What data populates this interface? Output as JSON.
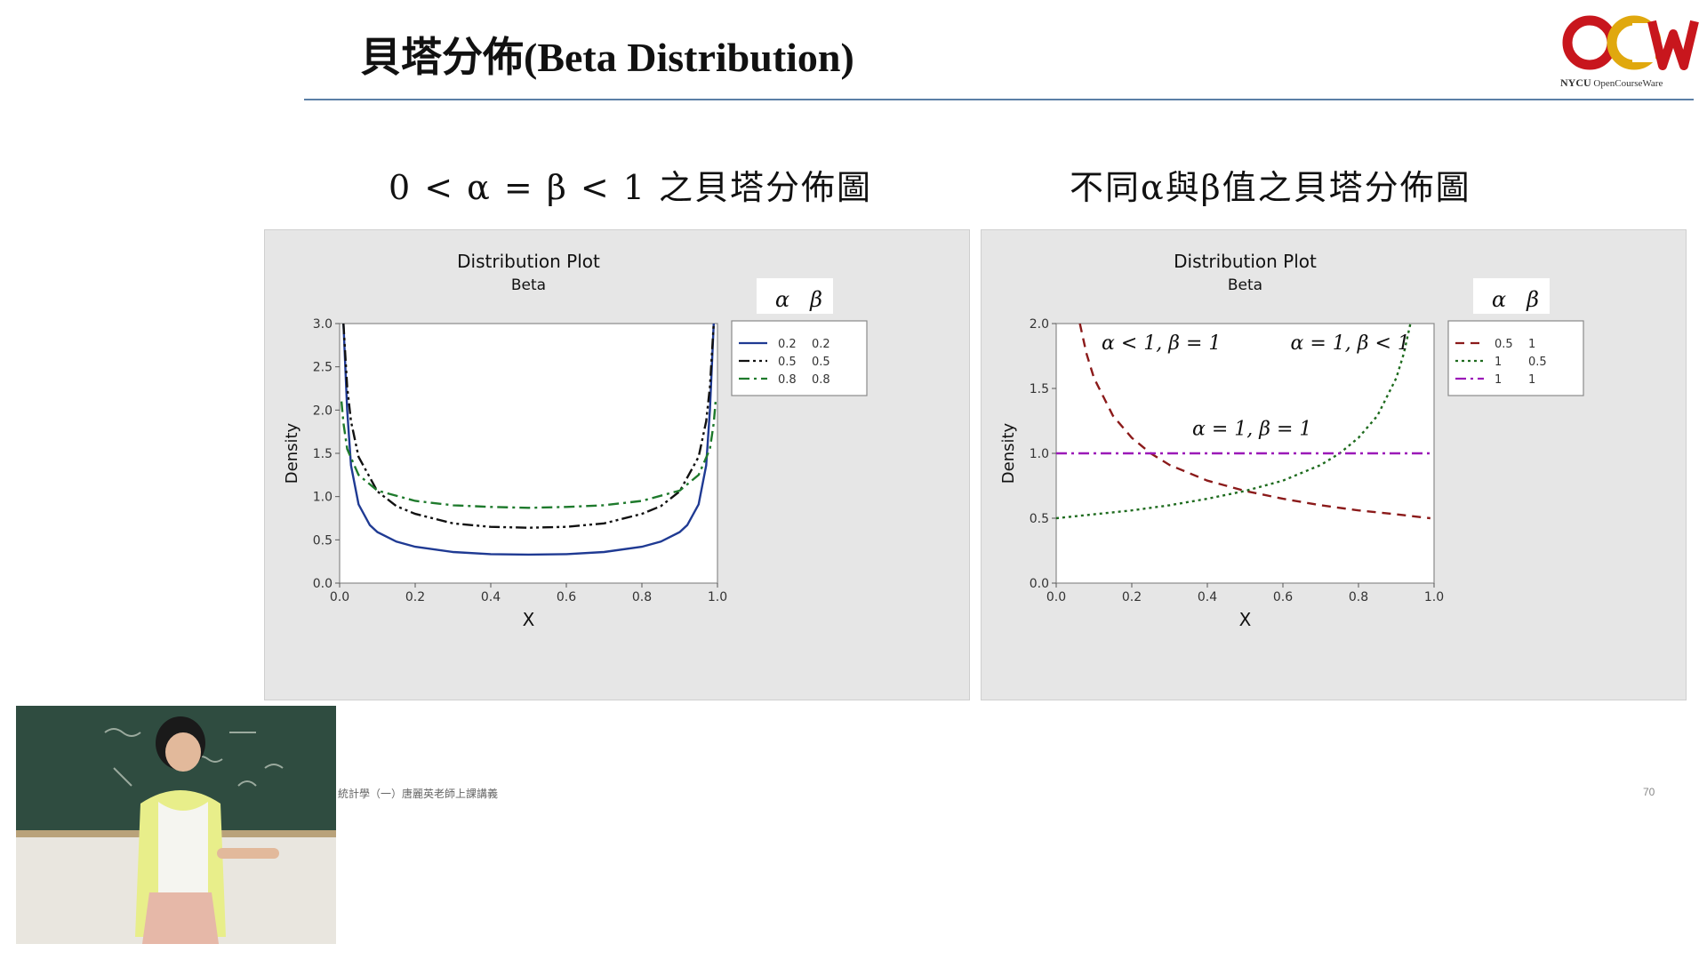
{
  "slide": {
    "title": "貝塔分佈(Beta Distribution)",
    "subtitle_left": "0 < α = β < 1 之貝塔分佈圖",
    "subtitle_right": "不同α與β值之貝塔分佈圖",
    "footer": "統計學（一）唐麗英老師上課講義",
    "page_number": "70"
  },
  "logo": {
    "text": "OCW",
    "caption_bold": "NYCU",
    "caption": "OpenCourseWare",
    "colors": {
      "red": "#c8161d",
      "gold": "#e0a80e"
    }
  },
  "chart_data": [
    {
      "type": "line",
      "title": "Distribution Plot",
      "subtitle": "Beta",
      "xlabel": "X",
      "ylabel": "Density",
      "xlim": [
        0,
        1
      ],
      "ylim": [
        0,
        3
      ],
      "xticks": [
        "0.0",
        "0.2",
        "0.4",
        "0.6",
        "0.8",
        "1.0"
      ],
      "yticks": [
        "0.0",
        "0.5",
        "1.0",
        "1.5",
        "2.0",
        "2.5",
        "3.0"
      ],
      "legend": {
        "header": [
          "α",
          "β"
        ],
        "position": "right"
      },
      "series": [
        {
          "alpha": "0.2",
          "beta": "0.2",
          "color": "#1f3a93",
          "dash": "solid",
          "x": [
            0.01,
            0.02,
            0.03,
            0.05,
            0.08,
            0.1,
            0.15,
            0.2,
            0.3,
            0.4,
            0.5,
            0.6,
            0.7,
            0.8,
            0.85,
            0.9,
            0.92,
            0.95,
            0.97,
            0.98,
            0.99
          ],
          "y": [
            3.0,
            2.0,
            1.36,
            0.91,
            0.67,
            0.59,
            0.48,
            0.42,
            0.36,
            0.335,
            0.33,
            0.335,
            0.36,
            0.42,
            0.48,
            0.59,
            0.67,
            0.91,
            1.36,
            2.0,
            3.0
          ]
        },
        {
          "alpha": "0.5",
          "beta": "0.5",
          "color": "#111111",
          "dash": "dash-dot-dot",
          "x": [
            0.01,
            0.02,
            0.03,
            0.05,
            0.1,
            0.15,
            0.2,
            0.3,
            0.4,
            0.5,
            0.6,
            0.7,
            0.8,
            0.85,
            0.9,
            0.95,
            0.97,
            0.98,
            0.99
          ],
          "y": [
            3.0,
            2.27,
            1.87,
            1.46,
            1.06,
            0.89,
            0.8,
            0.69,
            0.65,
            0.64,
            0.65,
            0.69,
            0.8,
            0.89,
            1.06,
            1.46,
            1.87,
            2.27,
            3.0
          ]
        },
        {
          "alpha": "0.8",
          "beta": "0.8",
          "color": "#1e7a2c",
          "dash": "dash-dot",
          "x": [
            0.005,
            0.01,
            0.02,
            0.05,
            0.1,
            0.2,
            0.3,
            0.4,
            0.5,
            0.6,
            0.7,
            0.8,
            0.9,
            0.95,
            0.98,
            0.99,
            0.995
          ],
          "y": [
            2.1,
            1.85,
            1.55,
            1.25,
            1.07,
            0.95,
            0.9,
            0.88,
            0.87,
            0.88,
            0.9,
            0.95,
            1.07,
            1.25,
            1.55,
            1.85,
            2.1
          ]
        }
      ]
    },
    {
      "type": "line",
      "title": "Distribution Plot",
      "subtitle": "Beta",
      "xlabel": "X",
      "ylabel": "Density",
      "xlim": [
        0,
        1
      ],
      "ylim": [
        0,
        2
      ],
      "xticks": [
        "0.0",
        "0.2",
        "0.4",
        "0.6",
        "0.8",
        "1.0"
      ],
      "yticks": [
        "0.0",
        "0.5",
        "1.0",
        "1.5",
        "2.0"
      ],
      "legend": {
        "header": [
          "α",
          "β"
        ],
        "position": "right"
      },
      "annotations": [
        {
          "text": "α < 1, β = 1",
          "x": 0.12,
          "y": 1.8
        },
        {
          "text": "α = 1, β < 1",
          "x": 0.62,
          "y": 1.8
        },
        {
          "text": "α = 1, β = 1",
          "x": 0.36,
          "y": 1.14
        }
      ],
      "series": [
        {
          "alpha": "0.5",
          "beta": "1",
          "color": "#8b1a1a",
          "dash": "dashed",
          "x": [
            0.0625,
            0.08,
            0.1,
            0.15,
            0.2,
            0.25,
            0.3,
            0.4,
            0.5,
            0.6,
            0.7,
            0.8,
            0.9,
            0.99
          ],
          "y": [
            2.0,
            1.77,
            1.58,
            1.29,
            1.12,
            1.0,
            0.91,
            0.79,
            0.71,
            0.65,
            0.6,
            0.56,
            0.53,
            0.5
          ]
        },
        {
          "alpha": "1",
          "beta": "0.5",
          "color": "#1e6b1e",
          "dash": "dotted",
          "x": [
            0.0,
            0.1,
            0.2,
            0.3,
            0.4,
            0.5,
            0.6,
            0.7,
            0.75,
            0.8,
            0.85,
            0.9,
            0.92,
            0.9375
          ],
          "y": [
            0.5,
            0.53,
            0.56,
            0.6,
            0.65,
            0.71,
            0.79,
            0.91,
            1.0,
            1.12,
            1.29,
            1.58,
            1.77,
            2.0
          ]
        },
        {
          "alpha": "1",
          "beta": "1",
          "color": "#9b19b8",
          "dash": "dash-dot",
          "x": [
            0.0,
            1.0
          ],
          "y": [
            1.0,
            1.0
          ]
        }
      ]
    }
  ]
}
